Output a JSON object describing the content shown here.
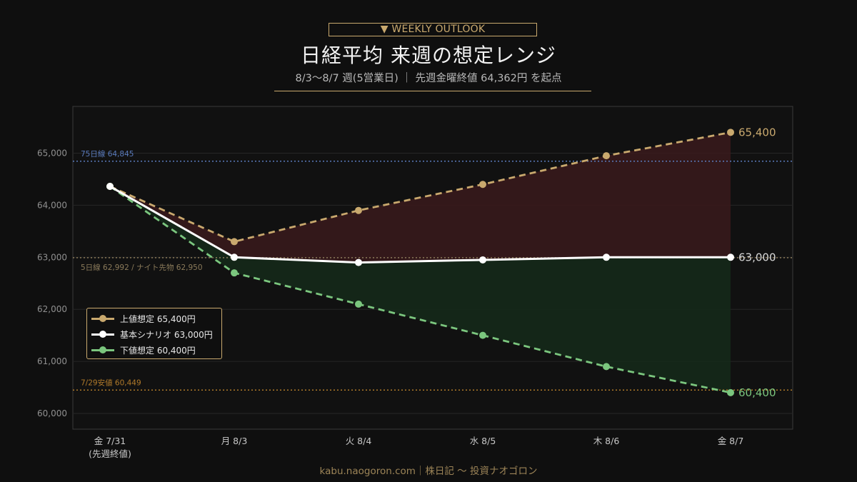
{
  "header": {
    "badge": "▼ WEEKLY OUTLOOK",
    "title": "日経平均 来週の想定レンジ",
    "subtitle": "8/3〜8/7 週(5営業日) ｜ 先週金曜終値 64,362円 を起点"
  },
  "footer": "kabu.naogoron.com｜株日記 〜 投資ナオゴロン",
  "colors": {
    "upper": "#c9a96e",
    "base": "#ffffff",
    "lower": "#7bc67e",
    "ma75": "#5a7bbd",
    "ma5": "#8a7a5a",
    "low_ref": "#b07a2a",
    "upper_fill": "#3a1a1c",
    "lower_fill": "#15291a"
  },
  "chart_data": {
    "type": "line",
    "categories": [
      [
        "金 7/31",
        "(先週終値)"
      ],
      [
        "月 8/3"
      ],
      [
        "火 8/4"
      ],
      [
        "水 8/5"
      ],
      [
        "木 8/6"
      ],
      [
        "金 8/7"
      ]
    ],
    "series": [
      {
        "name": "上値想定 65,400円",
        "key": "upper",
        "style": "dashed",
        "values": [
          64362,
          63300,
          63900,
          64400,
          64950,
          65400
        ],
        "end_label": "65,400"
      },
      {
        "name": "基本シナリオ 63,000円",
        "key": "base",
        "style": "solid",
        "values": [
          64362,
          63000,
          62900,
          62950,
          63000,
          63000
        ],
        "end_label": "63,000"
      },
      {
        "name": "下値想定 60,400円",
        "key": "lower",
        "style": "dashed",
        "values": [
          64362,
          62700,
          62100,
          61500,
          60900,
          60400
        ],
        "end_label": "60,400"
      }
    ],
    "reference_lines": [
      {
        "key": "ma75",
        "value": 64845,
        "label": "75日線 64,845"
      },
      {
        "key": "ma5",
        "value": 62992,
        "label": "5日線 62,992 / ナイト先物 62,950"
      },
      {
        "key": "low_ref",
        "value": 60449,
        "label": "7/29安値 60,449"
      }
    ],
    "yticks": [
      60000,
      61000,
      62000,
      63000,
      64000,
      65000
    ],
    "ytick_labels": [
      "60,000",
      "61,000",
      "62,000",
      "63,000",
      "64,000",
      "65,000"
    ],
    "ylim": [
      59700,
      65900
    ],
    "grid": true,
    "legend_position": "bottom-left"
  }
}
